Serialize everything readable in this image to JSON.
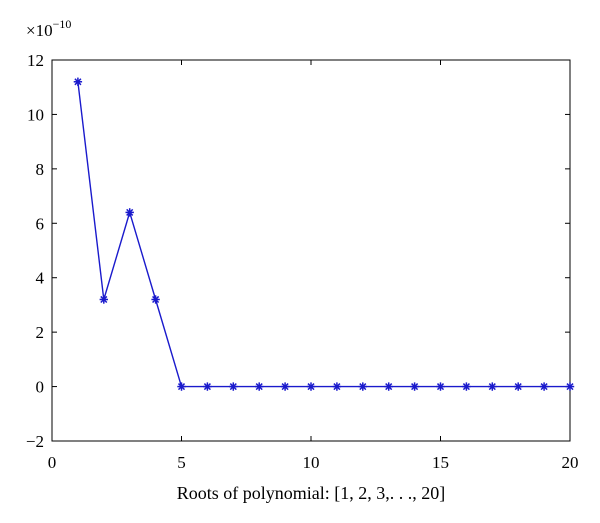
{
  "chart_data": {
    "type": "line",
    "title": "",
    "xlabel": "Roots of polynomial: [1, 2, 3,. . ., 20]",
    "ylabel": "",
    "y_multiplier": {
      "base": "×10",
      "exponent": "−10"
    },
    "xlim": [
      0,
      20
    ],
    "ylim": [
      -2,
      12
    ],
    "x_ticks": [
      0,
      5,
      10,
      15,
      20
    ],
    "x_tick_labels": [
      "0",
      "5",
      "10",
      "15",
      "20"
    ],
    "y_ticks": [
      -2,
      0,
      2,
      4,
      6,
      8,
      10,
      12
    ],
    "y_tick_labels": [
      "−2",
      "0",
      "2",
      "4",
      "6",
      "8",
      "10",
      "12"
    ],
    "grid": false,
    "series": [
      {
        "color": "#1a1acc",
        "marker": "asterisk",
        "x": [
          1,
          2,
          3,
          4,
          5,
          6,
          7,
          8,
          9,
          10,
          11,
          12,
          13,
          14,
          15,
          16,
          17,
          18,
          19,
          20
        ],
        "y": [
          11.2,
          3.2,
          6.4,
          3.2,
          0,
          0,
          0,
          0,
          0,
          0,
          0,
          0,
          0,
          0,
          0,
          0,
          0,
          0,
          0,
          0
        ]
      }
    ]
  }
}
